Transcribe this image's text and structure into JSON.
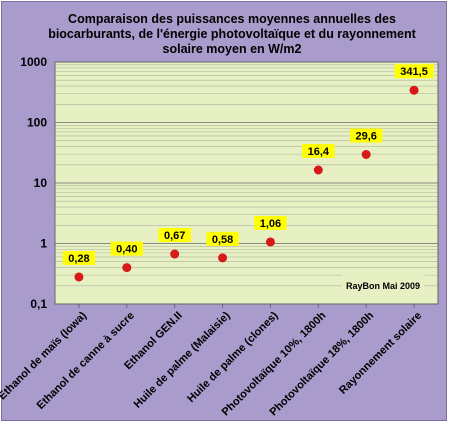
{
  "chart_data": {
    "type": "scatter",
    "title": "Comparaison des puissances moyennes annuelles des biocarburants, de l'énergie photovoltaïque et du rayonnement solaire moyen en W/m2",
    "categories": [
      "Ethanol de maïs (Iowa)",
      "Ethanol de canne à sucre",
      "Ethanol GEN.II",
      "Huile de palme (Malaisie)",
      "Huile de palme (clones)",
      "Photovoltaïque 10%, 1800h",
      "Photovoltaïque 18%, 1800h",
      "Rayonnement solaire"
    ],
    "values": [
      0.28,
      0.4,
      0.67,
      0.58,
      1.06,
      16.4,
      29.6,
      341.5
    ],
    "data_labels": [
      "0,28",
      "0,40",
      "0,67",
      "0,58",
      "1,06",
      "16,4",
      "29,6",
      "341,5"
    ],
    "y_scale": "log",
    "ylim": [
      0.1,
      1000
    ],
    "y_ticks": [
      0.1,
      1,
      10,
      100,
      1000
    ],
    "y_tick_labels": [
      "0,1",
      "1",
      "10",
      "100",
      "1000"
    ],
    "xlabel": "",
    "ylabel": "",
    "grid": true,
    "annotation": "RayBon Mai 2009",
    "colors": {
      "frame_bg": "#a99bcc",
      "plot_bg": "#e6f0c3",
      "marker": "#d7191c",
      "label_bg": "#ffff00",
      "grid": "#808080"
    }
  }
}
